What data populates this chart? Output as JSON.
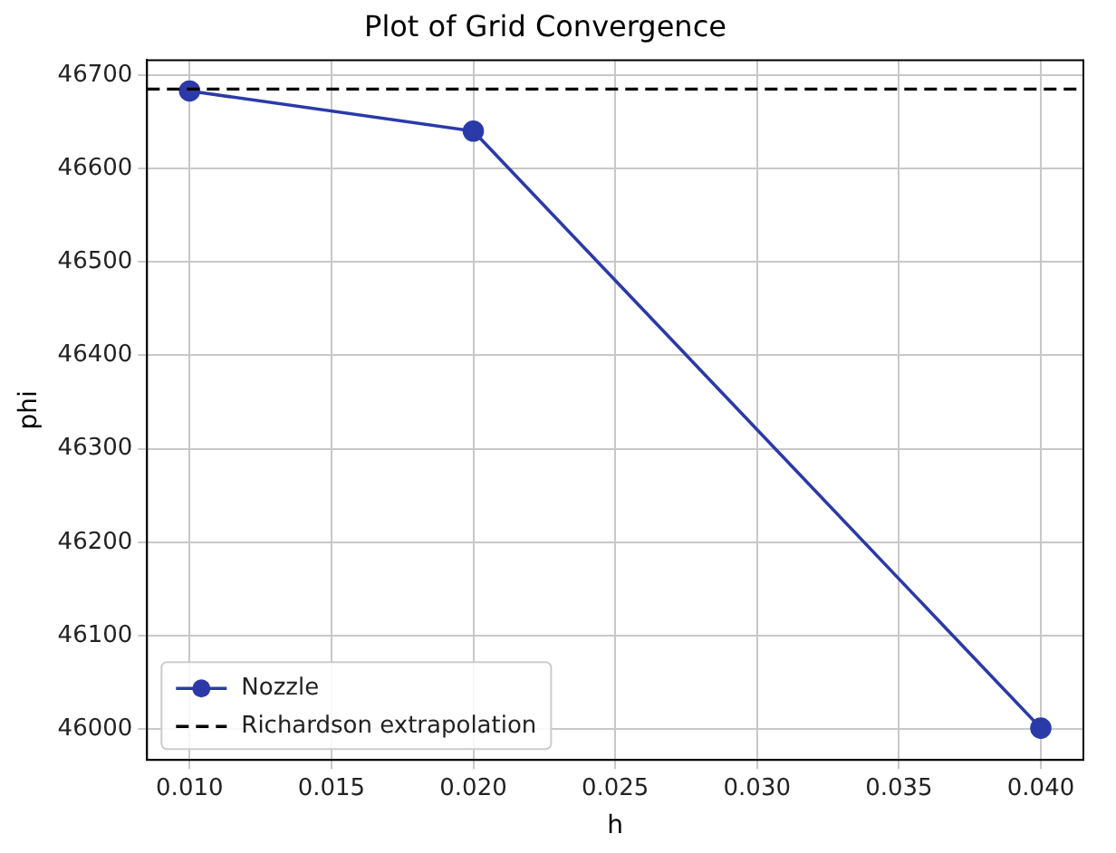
{
  "chart_data": {
    "type": "line",
    "title": "Plot of Grid Convergence",
    "xlabel": "h",
    "ylabel": "phi",
    "x": [
      0.01,
      0.02,
      0.04
    ],
    "series": [
      {
        "name": "Nozzle",
        "color": "#2b3aa8",
        "values": [
          46683,
          46640,
          46001
        ]
      }
    ],
    "ref_lines": [
      {
        "axis": "y",
        "value": 46685,
        "label": "Richardson extrapolation",
        "color": "#000000",
        "line_style": "dashed"
      }
    ],
    "xlim": [
      0.0085,
      0.0415
    ],
    "xticks": [
      {
        "value": 0.01,
        "label": "0.010"
      },
      {
        "value": 0.015,
        "label": "0.015"
      },
      {
        "value": 0.02,
        "label": "0.020"
      },
      {
        "value": 0.025,
        "label": "0.025"
      },
      {
        "value": 0.03,
        "label": "0.030"
      },
      {
        "value": 0.035,
        "label": "0.035"
      },
      {
        "value": 0.04,
        "label": "0.040"
      }
    ],
    "ylim": [
      45967,
      46716
    ],
    "yticks": [
      46000,
      46100,
      46200,
      46300,
      46400,
      46500,
      46600,
      46700
    ],
    "grid": true,
    "legend": "bottom left",
    "marker": "circle",
    "line_style": "solid"
  }
}
